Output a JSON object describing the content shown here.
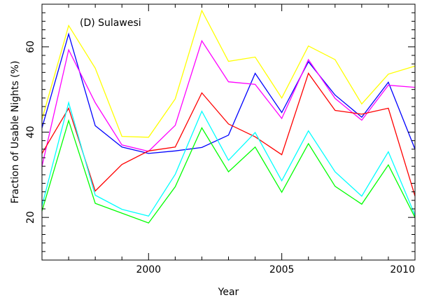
{
  "chart_data": {
    "type": "line",
    "title": "(D) Sulawesi",
    "xlabel": "Year",
    "ylabel": "Fraction of Usable Nights (%)",
    "xlim": [
      1996,
      2010
    ],
    "ylim": [
      10,
      70
    ],
    "x": [
      1996,
      1997,
      1998,
      1999,
      2000,
      2001,
      2002,
      2003,
      2004,
      2005,
      2006,
      2007,
      2008,
      2009,
      2010
    ],
    "x_ticks": [
      2000,
      2005,
      2010
    ],
    "x_tick_labels": [
      "2000",
      "2005",
      "2010"
    ],
    "y_ticks": [
      20,
      40,
      60
    ],
    "y_tick_labels": [
      "20",
      "40",
      "60"
    ],
    "grid": false,
    "legend": "none",
    "series": [
      {
        "color": "#ffff00",
        "values": [
          43.0,
          65.0,
          55.0,
          39.0,
          38.8,
          47.8,
          68.5,
          56.6,
          57.6,
          48.0,
          60.2,
          57.0,
          46.6,
          53.6,
          55.5
        ]
      },
      {
        "color": "#0000ff",
        "values": [
          41.0,
          63.0,
          41.5,
          36.5,
          35.0,
          35.6,
          36.4,
          39.3,
          53.8,
          44.6,
          56.5,
          48.7,
          43.5,
          51.7,
          36.0
        ]
      },
      {
        "color": "#ff00ff",
        "values": [
          32.0,
          59.3,
          46.9,
          37.0,
          35.5,
          41.6,
          61.4,
          51.8,
          51.2,
          43.2,
          57.0,
          47.9,
          42.8,
          51.0,
          50.5
        ]
      },
      {
        "color": "#ff0000",
        "values": [
          35.0,
          45.6,
          26.2,
          32.4,
          35.6,
          36.5,
          49.2,
          41.9,
          38.9,
          34.7,
          53.8,
          45.1,
          44.2,
          45.6,
          25.0
        ]
      },
      {
        "color": "#00ffff",
        "values": [
          22.7,
          46.9,
          25.2,
          21.9,
          20.3,
          30.1,
          44.9,
          33.4,
          39.9,
          28.6,
          40.3,
          30.7,
          25.0,
          35.4,
          20.5
        ]
      },
      {
        "color": "#00ff00",
        "values": [
          21.5,
          42.7,
          23.3,
          21.0,
          18.7,
          27.2,
          41.0,
          30.7,
          36.5,
          25.9,
          37.3,
          27.3,
          23.1,
          32.3,
          20.0
        ]
      }
    ]
  }
}
